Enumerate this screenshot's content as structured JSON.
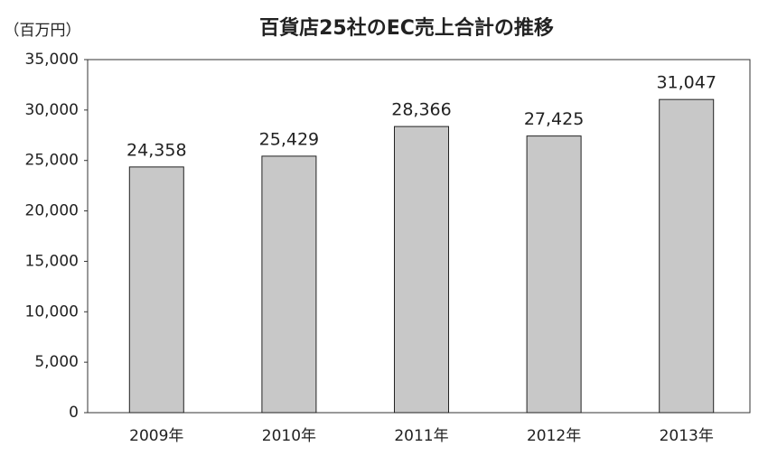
{
  "chart_data": {
    "type": "bar",
    "title": "百貨店25社のEC売上合計の推移",
    "y_axis_label": "（百万円）",
    "categories": [
      "2009年",
      "2010年",
      "2011年",
      "2012年",
      "2013年"
    ],
    "values": [
      24358,
      25429,
      28366,
      27425,
      31047
    ],
    "value_labels": [
      "24,358",
      "25,429",
      "28,366",
      "27,425",
      "31,047"
    ],
    "color": "#c8c8c8",
    "ylim": [
      0,
      35000
    ],
    "yticks": [
      0,
      {
        "value": 5000,
        "label": "5,000"
      },
      {
        "value": 10000,
        "label": "10,000"
      },
      {
        "value": 15000,
        "label": "15,000"
      },
      {
        "value": 20000,
        "label": "20,000"
      },
      {
        "value": 25000,
        "label": "25,000"
      },
      {
        "value": 30000,
        "label": "30,000"
      },
      {
        "value": 35000,
        "label": "35,000"
      }
    ],
    "grid": false
  }
}
